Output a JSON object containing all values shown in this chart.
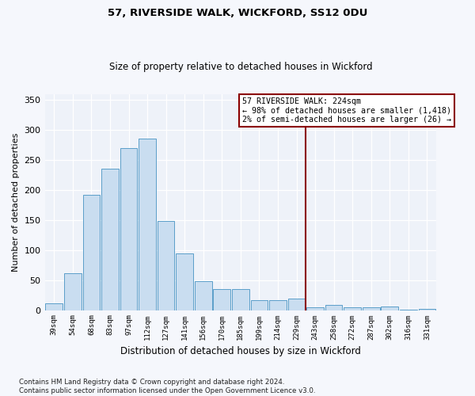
{
  "title1": "57, RIVERSIDE WALK, WICKFORD, SS12 0DU",
  "title2": "Size of property relative to detached houses in Wickford",
  "xlabel": "Distribution of detached houses by size in Wickford",
  "ylabel": "Number of detached properties",
  "categories": [
    "39sqm",
    "54sqm",
    "68sqm",
    "83sqm",
    "97sqm",
    "112sqm",
    "127sqm",
    "141sqm",
    "156sqm",
    "170sqm",
    "185sqm",
    "199sqm",
    "214sqm",
    "229sqm",
    "243sqm",
    "258sqm",
    "272sqm",
    "287sqm",
    "302sqm",
    "316sqm",
    "331sqm"
  ],
  "values": [
    11,
    61,
    192,
    236,
    270,
    285,
    148,
    95,
    48,
    35,
    35,
    16,
    16,
    19,
    5,
    8,
    5,
    5,
    6,
    1,
    2
  ],
  "bar_color": "#c9ddf0",
  "bar_edge_color": "#5a9ec9",
  "vline_x": 13.5,
  "vline_color": "#8b0000",
  "annotation_text": "57 RIVERSIDE WALK: 224sqm\n← 98% of detached houses are smaller (1,418)\n2% of semi-detached houses are larger (26) →",
  "footnote": "Contains HM Land Registry data © Crown copyright and database right 2024.\nContains public sector information licensed under the Open Government Licence v3.0.",
  "bg_color": "#eef2f9",
  "grid_color": "#ffffff",
  "fig_bg_color": "#f5f7fc",
  "ylim": [
    0,
    360
  ],
  "yticks": [
    0,
    50,
    100,
    150,
    200,
    250,
    300,
    350
  ]
}
